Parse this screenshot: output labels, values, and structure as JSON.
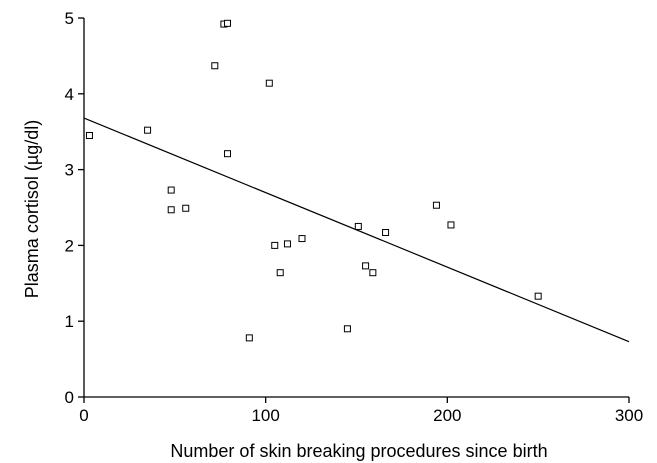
{
  "chart_data": {
    "type": "scatter",
    "xlabel": "Number of skin breaking procedures since birth",
    "ylabel": "Plasma cortisol (µg/dl)",
    "xlim": [
      0,
      300
    ],
    "ylim": [
      0,
      5
    ],
    "x_ticks": [
      0,
      100,
      200,
      300
    ],
    "y_ticks": [
      0,
      1,
      2,
      3,
      4,
      5
    ],
    "grid": false,
    "marker": "open-square",
    "points": [
      {
        "x": 3,
        "y": 3.45
      },
      {
        "x": 35,
        "y": 3.52
      },
      {
        "x": 48,
        "y": 2.73
      },
      {
        "x": 48,
        "y": 2.47
      },
      {
        "x": 56,
        "y": 2.49
      },
      {
        "x": 72,
        "y": 4.37
      },
      {
        "x": 77,
        "y": 4.92
      },
      {
        "x": 79,
        "y": 4.93
      },
      {
        "x": 79,
        "y": 3.21
      },
      {
        "x": 91,
        "y": 0.78
      },
      {
        "x": 102,
        "y": 4.14
      },
      {
        "x": 105,
        "y": 2.0
      },
      {
        "x": 108,
        "y": 1.64
      },
      {
        "x": 112,
        "y": 2.02
      },
      {
        "x": 120,
        "y": 2.09
      },
      {
        "x": 145,
        "y": 0.9
      },
      {
        "x": 151,
        "y": 2.25
      },
      {
        "x": 155,
        "y": 1.73
      },
      {
        "x": 159,
        "y": 1.64
      },
      {
        "x": 166,
        "y": 2.17
      },
      {
        "x": 194,
        "y": 2.53
      },
      {
        "x": 202,
        "y": 2.27
      },
      {
        "x": 250,
        "y": 1.33
      }
    ],
    "trend_line": {
      "x": [
        0,
        300
      ],
      "y": [
        3.68,
        0.73
      ]
    },
    "colors": {
      "axis": "#000000",
      "marker_stroke": "#000000",
      "marker_fill": "#ffffff",
      "line": "#000000"
    }
  }
}
